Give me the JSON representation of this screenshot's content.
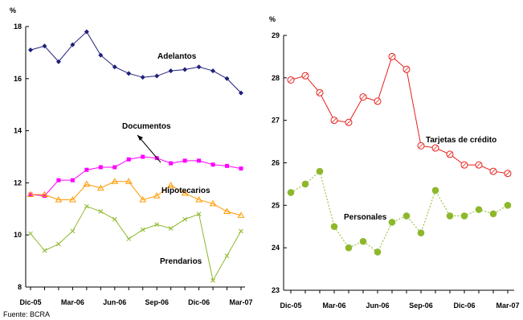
{
  "source": "Fuente: BCRA",
  "chart_data": [
    {
      "type": "line",
      "unit_label": "%",
      "x_tick_labels": [
        "Dic-05",
        "Mar-06",
        "Jun-06",
        "Sep-06",
        "Dic-06",
        "Mar-07"
      ],
      "ylim": [
        8,
        18
      ],
      "y_ticks": [
        8,
        10,
        12,
        14,
        16,
        18
      ],
      "grid": false,
      "series": [
        {
          "name": "Adelantos",
          "color": "#1f1f7a",
          "marker": "diamond",
          "values": [
            17.1,
            17.25,
            16.65,
            17.3,
            17.8,
            16.9,
            16.45,
            16.2,
            16.05,
            16.1,
            16.3,
            16.35,
            16.45,
            16.3,
            16.0,
            15.45
          ]
        },
        {
          "name": "Documentos",
          "color": "#ff00ff",
          "marker": "square",
          "values": [
            11.55,
            11.5,
            12.1,
            12.1,
            12.5,
            12.6,
            12.6,
            12.9,
            13.0,
            12.95,
            12.75,
            12.85,
            12.85,
            12.7,
            12.65,
            12.55
          ]
        },
        {
          "name": "Hipotecarios",
          "color": "#ff9900",
          "marker": "triangle",
          "values": [
            11.55,
            11.55,
            11.35,
            11.35,
            11.95,
            11.8,
            12.05,
            12.05,
            11.35,
            11.5,
            11.9,
            11.6,
            11.35,
            11.2,
            10.9,
            10.75
          ]
        },
        {
          "name": "Prendarios",
          "color": "#8db82c",
          "marker": "x",
          "values": [
            10.05,
            9.4,
            9.65,
            10.15,
            11.1,
            10.9,
            10.6,
            9.85,
            10.2,
            10.4,
            10.25,
            10.6,
            10.8,
            8.25,
            9.2,
            10.15
          ]
        }
      ]
    },
    {
      "type": "line",
      "unit_label": "%",
      "x_tick_labels": [
        "Dic-05",
        "Mar-06",
        "Jun-06",
        "Sep-06",
        "Dic-06",
        "Mar-07"
      ],
      "ylim": [
        23,
        29
      ],
      "y_ticks": [
        23,
        24,
        25,
        26,
        27,
        28,
        29
      ],
      "grid": false,
      "series": [
        {
          "name": "Tarjetas de crédito",
          "color": "#e6201b",
          "marker": "circle-open",
          "line": "solid",
          "values": [
            27.95,
            28.05,
            27.65,
            27.0,
            26.95,
            27.55,
            27.45,
            28.5,
            28.2,
            26.4,
            26.35,
            26.2,
            25.95,
            25.95,
            25.8,
            25.75
          ]
        },
        {
          "name": "Personales",
          "color": "#8db82c",
          "marker": "circle-filled",
          "line": "dotted",
          "values": [
            25.3,
            25.5,
            25.8,
            24.5,
            24.0,
            24.15,
            23.9,
            24.6,
            24.75,
            24.35,
            25.35,
            24.75,
            24.75,
            24.9,
            24.8,
            25.0
          ]
        }
      ]
    }
  ]
}
